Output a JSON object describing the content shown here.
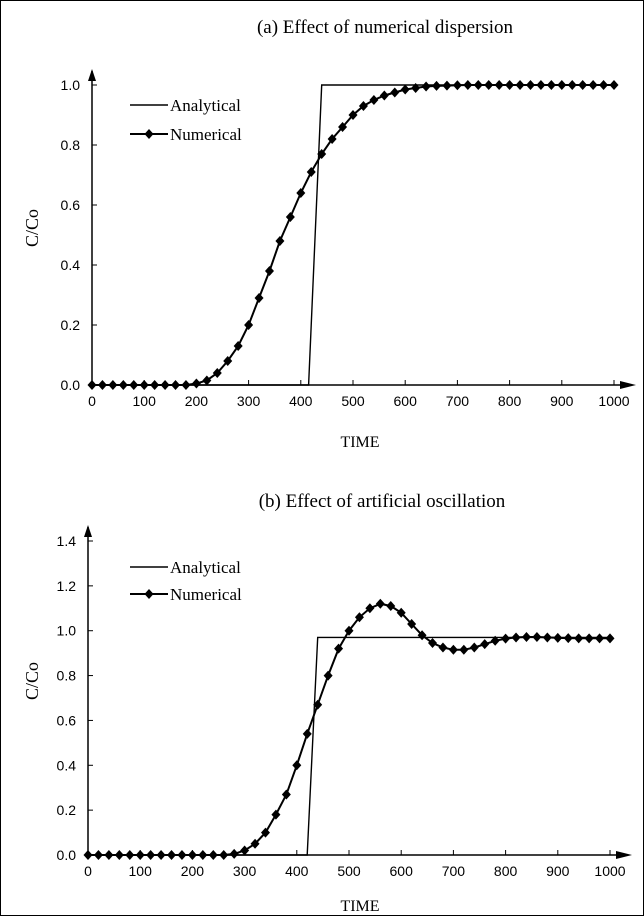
{
  "chart_data": [
    {
      "type": "line",
      "title": "(a) Effect of numerical dispersion",
      "xlabel": "TIME",
      "ylabel": "C/Co",
      "xlim": [
        0,
        1000
      ],
      "ylim": [
        0,
        1.0
      ],
      "xticks": [
        "0",
        "100",
        "200",
        "300",
        "400",
        "500",
        "600",
        "700",
        "800",
        "900",
        "1000"
      ],
      "yticks": [
        "0.0",
        "0.2",
        "0.4",
        "0.6",
        "0.8",
        "1.0"
      ],
      "legend_position": "top-left",
      "legend_entries": [
        "Analytical",
        "Numerical"
      ],
      "series": [
        {
          "name": "Analytical",
          "marker": "none",
          "x": [
            0,
            415,
            440,
            1000
          ],
          "y": [
            0,
            0,
            1.0,
            1.0
          ]
        },
        {
          "name": "Numerical",
          "marker": "diamond",
          "x": [
            0,
            20,
            40,
            60,
            80,
            100,
            120,
            140,
            160,
            180,
            200,
            220,
            240,
            260,
            280,
            300,
            320,
            340,
            360,
            380,
            400,
            420,
            440,
            460,
            480,
            500,
            520,
            540,
            560,
            580,
            600,
            620,
            640,
            660,
            680,
            700,
            720,
            740,
            760,
            780,
            800,
            820,
            840,
            860,
            880,
            900,
            920,
            940,
            960,
            980,
            1000
          ],
          "y": [
            0,
            0,
            0,
            0,
            0,
            0,
            0,
            0,
            0,
            0,
            0.005,
            0.015,
            0.04,
            0.08,
            0.13,
            0.2,
            0.29,
            0.38,
            0.48,
            0.56,
            0.64,
            0.71,
            0.77,
            0.82,
            0.86,
            0.9,
            0.93,
            0.95,
            0.965,
            0.975,
            0.985,
            0.99,
            0.995,
            0.997,
            0.998,
            0.999,
            1.0,
            1.0,
            1.0,
            1.0,
            1.0,
            1.0,
            1.0,
            1.0,
            1.0,
            1.0,
            1.0,
            1.0,
            1.0,
            1.0,
            1.0
          ]
        }
      ]
    },
    {
      "type": "line",
      "title": "(b) Effect of artificial oscillation",
      "xlabel": "TIME",
      "ylabel": "C/Co",
      "xlim": [
        0,
        1000
      ],
      "ylim": [
        0,
        1.4
      ],
      "xticks": [
        "0",
        "100",
        "200",
        "300",
        "400",
        "500",
        "600",
        "700",
        "800",
        "900",
        "1000"
      ],
      "yticks": [
        "0.0",
        "0.2",
        "0.4",
        "0.6",
        "0.8",
        "1.0",
        "1.2",
        "1.4"
      ],
      "legend_position": "top-left",
      "legend_entries": [
        "Analytical",
        "Numerical"
      ],
      "series": [
        {
          "name": "Analytical",
          "marker": "none",
          "x": [
            0,
            420,
            440,
            1000
          ],
          "y": [
            0,
            0,
            0.97,
            0.97
          ]
        },
        {
          "name": "Numerical",
          "marker": "diamond",
          "x": [
            0,
            20,
            40,
            60,
            80,
            100,
            120,
            140,
            160,
            180,
            200,
            220,
            240,
            260,
            280,
            300,
            320,
            340,
            360,
            380,
            400,
            420,
            440,
            460,
            480,
            500,
            520,
            540,
            560,
            580,
            600,
            620,
            640,
            660,
            680,
            700,
            720,
            740,
            760,
            780,
            800,
            820,
            840,
            860,
            880,
            900,
            920,
            940,
            960,
            980,
            1000
          ],
          "y": [
            0,
            0,
            0,
            0,
            0,
            0,
            0,
            0,
            0,
            0,
            0,
            0,
            0,
            0,
            0.005,
            0.02,
            0.05,
            0.1,
            0.18,
            0.27,
            0.4,
            0.54,
            0.67,
            0.8,
            0.92,
            1.0,
            1.06,
            1.1,
            1.12,
            1.11,
            1.08,
            1.03,
            0.98,
            0.945,
            0.925,
            0.915,
            0.915,
            0.925,
            0.94,
            0.955,
            0.965,
            0.97,
            0.972,
            0.972,
            0.97,
            0.968,
            0.967,
            0.966,
            0.966,
            0.966,
            0.966
          ]
        }
      ]
    }
  ]
}
